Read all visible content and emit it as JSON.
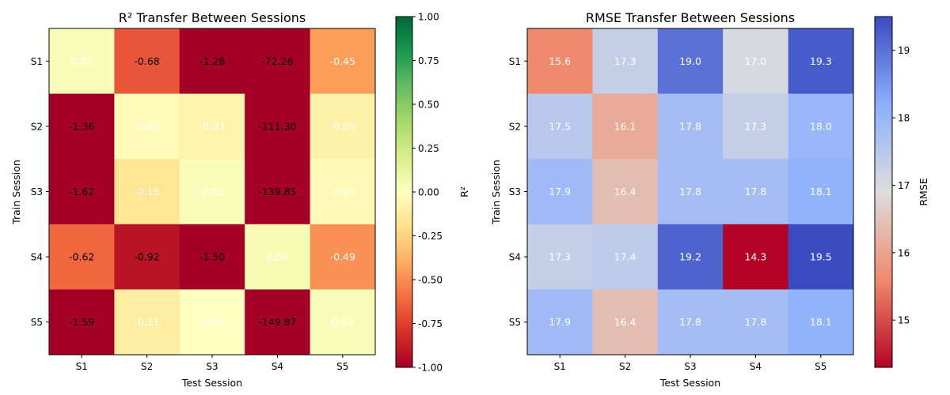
{
  "chart_data": [
    {
      "type": "heatmap",
      "title": "R² Transfer Between Sessions",
      "xlabel": "Test Session",
      "ylabel": "Train Session",
      "x_categories": [
        "S1",
        "S2",
        "S3",
        "S4",
        "S5"
      ],
      "y_categories": [
        "S1",
        "S2",
        "S3",
        "S4",
        "S5"
      ],
      "values": [
        [
          0.03,
          -0.68,
          -1.28,
          -72.26,
          -0.45
        ],
        [
          -1.36,
          -0.02,
          -0.07,
          -111.3,
          -0.09
        ],
        [
          -1.62,
          -0.16,
          0.03,
          -139.85,
          -0.03
        ],
        [
          -0.62,
          -0.92,
          -1.5,
          0.04,
          -0.49
        ],
        [
          -1.59,
          -0.11,
          0.0,
          -149.87,
          0.03
        ]
      ],
      "value_labels": [
        [
          "0.03",
          "-0.68",
          "-1.28",
          "-72.26",
          "-0.45"
        ],
        [
          "-1.36",
          "-0.02",
          "-0.07",
          "-111.30",
          "-0.09"
        ],
        [
          "-1.62",
          "-0.16",
          "0.03",
          "-139.85",
          "-0.03"
        ],
        [
          "-0.62",
          "-0.92",
          "-1.50",
          "0.04",
          "-0.49"
        ],
        [
          "-1.59",
          "-0.11",
          "0.00",
          "-149.87",
          "0.03"
        ]
      ],
      "colormap": "RdYlGn",
      "clim": [
        -1.0,
        1.0
      ],
      "colorbar_label": "R²",
      "colorbar_ticks": [
        "1.00",
        "0.75",
        "0.50",
        "0.25",
        "0.00",
        "-0.25",
        "-0.50",
        "-0.75",
        "-1.00"
      ]
    },
    {
      "type": "heatmap",
      "title": "RMSE Transfer Between Sessions",
      "xlabel": "Test Session",
      "ylabel": "Train Session",
      "x_categories": [
        "S1",
        "S2",
        "S3",
        "S4",
        "S5"
      ],
      "y_categories": [
        "S1",
        "S2",
        "S3",
        "S4",
        "S5"
      ],
      "values": [
        [
          15.6,
          17.3,
          19.0,
          17.0,
          19.3
        ],
        [
          17.5,
          16.1,
          17.8,
          17.3,
          18.0
        ],
        [
          17.9,
          16.4,
          17.8,
          17.8,
          18.1
        ],
        [
          17.3,
          17.4,
          19.2,
          14.3,
          19.5
        ],
        [
          17.9,
          16.4,
          17.8,
          17.8,
          18.1
        ]
      ],
      "value_labels": [
        [
          "15.6",
          "17.3",
          "19.0",
          "17.0",
          "19.3"
        ],
        [
          "17.5",
          "16.1",
          "17.8",
          "17.3",
          "18.0"
        ],
        [
          "17.9",
          "16.4",
          "17.8",
          "17.8",
          "18.1"
        ],
        [
          "17.3",
          "17.4",
          "19.2",
          "14.3",
          "19.5"
        ],
        [
          "17.9",
          "16.4",
          "17.8",
          "17.8",
          "18.1"
        ]
      ],
      "colormap": "coolwarm_r",
      "clim": [
        14.3,
        19.5
      ],
      "colorbar_label": "RMSE",
      "colorbar_tick_values": [
        15,
        16,
        17,
        18,
        19
      ],
      "colorbar_ticks": [
        "15",
        "16",
        "17",
        "18",
        "19"
      ]
    }
  ]
}
